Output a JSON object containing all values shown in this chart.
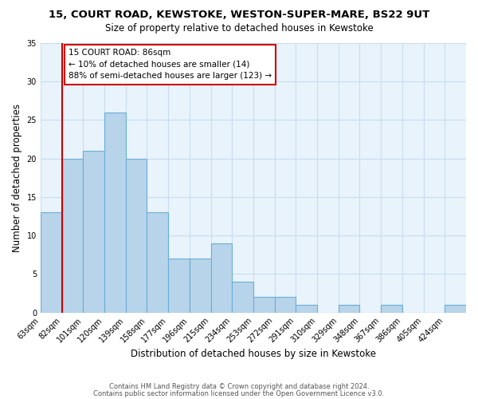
{
  "title1": "15, COURT ROAD, KEWSTOKE, WESTON-SUPER-MARE, BS22 9UT",
  "title2": "Size of property relative to detached houses in Kewstoke",
  "xlabel": "Distribution of detached houses by size in Kewstoke",
  "ylabel": "Number of detached properties",
  "bar_values": [
    13,
    20,
    21,
    26,
    20,
    13,
    7,
    7,
    9,
    4,
    2,
    2,
    1,
    0,
    1,
    0,
    1,
    0,
    0,
    1
  ],
  "bin_labels": [
    "63sqm",
    "82sqm",
    "101sqm",
    "120sqm",
    "139sqm",
    "158sqm",
    "177sqm",
    "196sqm",
    "215sqm",
    "234sqm",
    "253sqm",
    "272sqm",
    "291sqm",
    "310sqm",
    "329sqm",
    "348sqm",
    "367sqm",
    "386sqm",
    "405sqm",
    "424sqm"
  ],
  "bar_color": "#b8d4ea",
  "bar_edge_color": "#6aaed6",
  "marker_line_color": "#cc0000",
  "ylim": [
    0,
    35
  ],
  "yticks": [
    0,
    5,
    10,
    15,
    20,
    25,
    30,
    35
  ],
  "annotation_title": "15 COURT ROAD: 86sqm",
  "annotation_line1": "← 10% of detached houses are smaller (14)",
  "annotation_line2": "88% of semi-detached houses are larger (123) →",
  "annotation_box_color": "#ffffff",
  "annotation_box_edge": "#cc0000",
  "footer1": "Contains HM Land Registry data © Crown copyright and database right 2024.",
  "footer2": "Contains public sector information licensed under the Open Government Licence v3.0."
}
